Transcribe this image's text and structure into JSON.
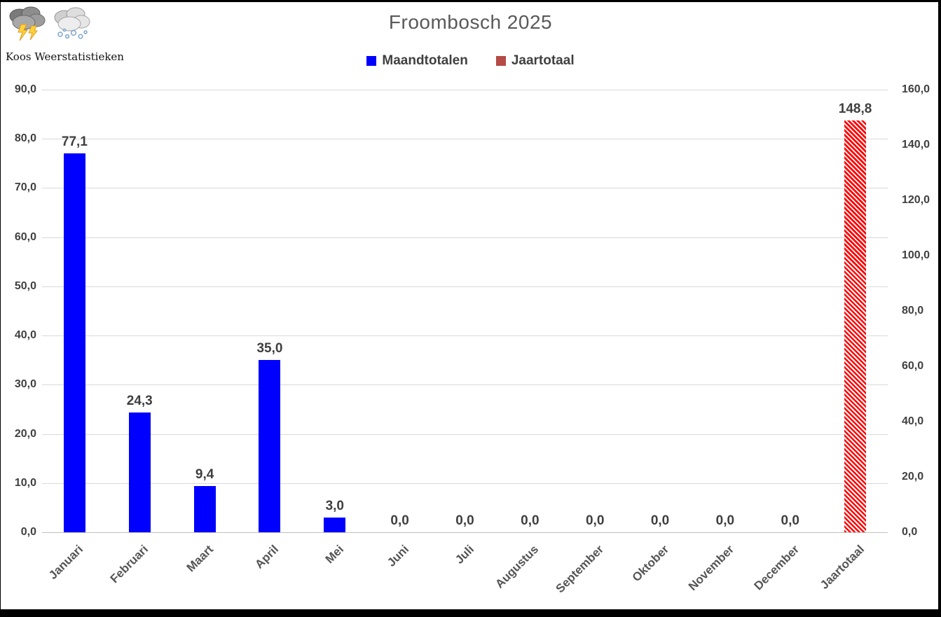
{
  "header": {
    "watermark": "Koos Weerstatistieken",
    "icons": [
      {
        "name": "storm-cloud-icon"
      },
      {
        "name": "snow-cloud-icon"
      }
    ]
  },
  "chart_data": {
    "type": "bar",
    "title": "Froombosch 2025",
    "legend_position": "top",
    "grid": true,
    "categories": [
      "Januari",
      "Februari",
      "Maart",
      "April",
      "Mei",
      "Juni",
      "Juli",
      "Augustus",
      "September",
      "Oktober",
      "November",
      "December",
      "Jaartotaal"
    ],
    "series": [
      {
        "name": "Maandtotalen",
        "axis": "left",
        "color": "#0000fe",
        "legend_color": "#0000fe",
        "pattern": "solid",
        "values": [
          77.1,
          24.3,
          9.4,
          35.0,
          3.0,
          0.0,
          0.0,
          0.0,
          0.0,
          0.0,
          0.0,
          0.0,
          null
        ],
        "labels": [
          "77,1",
          "24,3",
          "9,4",
          "35,0",
          "3,0",
          "0,0",
          "0,0",
          "0,0",
          "0,0",
          "0,0",
          "0,0",
          "0,0",
          null
        ]
      },
      {
        "name": "Jaartotaal",
        "axis": "right",
        "color": "#ff0000",
        "legend_color": "#b54a46",
        "pattern": "diagonal-hatch",
        "values": [
          null,
          null,
          null,
          null,
          null,
          null,
          null,
          null,
          null,
          null,
          null,
          null,
          148.8
        ],
        "labels": [
          null,
          null,
          null,
          null,
          null,
          null,
          null,
          null,
          null,
          null,
          null,
          null,
          "148,8"
        ]
      }
    ],
    "left_axis": {
      "min": 0,
      "max": 90,
      "ticks": [
        "90,0",
        "80,0",
        "70,0",
        "60,0",
        "50,0",
        "40,0",
        "30,0",
        "20,0",
        "10,0",
        "0,0"
      ]
    },
    "right_axis": {
      "min": 0,
      "max": 160,
      "ticks": [
        "160,0",
        "140,0",
        "120,0",
        "100,0",
        "80,0",
        "60,0",
        "40,0",
        "20,0",
        "0,0"
      ]
    },
    "colors": {
      "gridline": "#d9d9d9",
      "axis_line": "#bfbfbf",
      "title_text": "#595959",
      "label_text": "#3f3f3f"
    }
  }
}
